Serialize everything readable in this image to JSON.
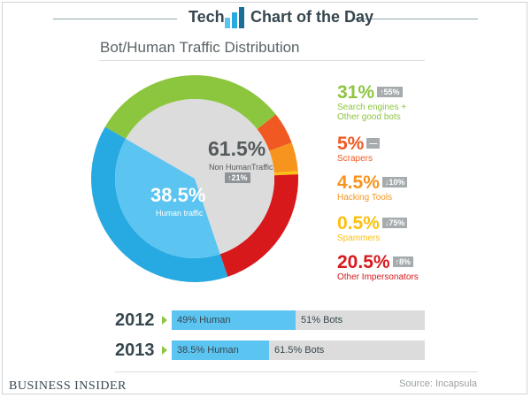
{
  "header": {
    "left": "Tech",
    "right": "Chart of the Day"
  },
  "chart_data": {
    "type": "pie",
    "title": "Bot/Human Traffic Distribution",
    "slices": [
      {
        "key": "good_bots",
        "value": 31,
        "label": "31%",
        "change": "↑55%",
        "name": "Search engines + Other good bots",
        "color": "#8cc63f"
      },
      {
        "key": "scrapers",
        "value": 5,
        "label": "5%",
        "change": "—",
        "name": "Scrapers",
        "color": "#f05a22"
      },
      {
        "key": "hacking",
        "value": 4.5,
        "label": "4.5%",
        "change": "↓10%",
        "name": "Hacking Tools",
        "color": "#f7941d"
      },
      {
        "key": "spammers",
        "value": 0.5,
        "label": "0.5%",
        "change": "↓75%",
        "name": "Spammers",
        "color": "#fdc010"
      },
      {
        "key": "impersonators",
        "value": 20.5,
        "label": "20.5%",
        "change": "↑8%",
        "name": "Other Impersonators",
        "color": "#d7191c"
      },
      {
        "key": "human",
        "value": 38.5,
        "label": "38.5%",
        "name": "Human traffic",
        "color": "#27a9e1"
      }
    ],
    "center": {
      "pct": "61.5%",
      "label": "Non HumanTraffic",
      "change": "↑21%"
    },
    "human": {
      "pct": "38.5%",
      "label": "Human traffic"
    },
    "comparison": [
      {
        "year": "2012",
        "human_pct": 49,
        "human_label": "49% Human",
        "bots_label": "51% Bots"
      },
      {
        "year": "2013",
        "human_pct": 38.5,
        "human_label": "38.5% Human",
        "bots_label": "61.5% Bots"
      }
    ]
  },
  "legend_lines": {
    "good_bots_1": "Search engines +",
    "good_bots_2": "Other good bots"
  },
  "footer": {
    "brand": "Business Insider",
    "source": "Source: Incapsula"
  },
  "colors": {
    "inner_human": "#5bc4f1",
    "inner_bots": "#dcdcdc"
  }
}
